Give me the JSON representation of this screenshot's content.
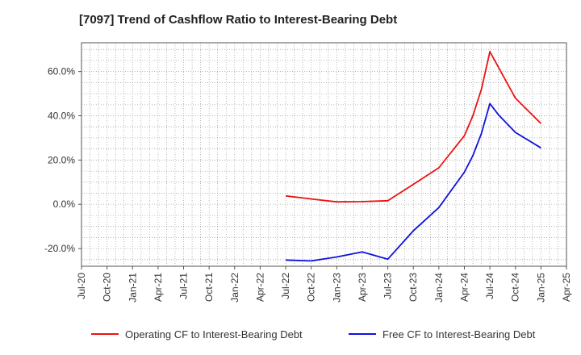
{
  "chart_data": {
    "type": "line",
    "title": "[7097]  Trend of Cashflow Ratio to Interest-Bearing Debt",
    "xlabel": "",
    "ylabel": "",
    "x_ticks": [
      "Jul-20",
      "Oct-20",
      "Jan-21",
      "Apr-21",
      "Jul-21",
      "Oct-21",
      "Jan-22",
      "Apr-22",
      "Jul-22",
      "Oct-22",
      "Jan-23",
      "Apr-23",
      "Jul-23",
      "Oct-23",
      "Jan-24",
      "Apr-24",
      "Jul-24",
      "Oct-24",
      "Jan-25",
      "Apr-25"
    ],
    "y_ticks": [
      -20,
      0,
      20,
      40,
      60
    ],
    "y_tick_labels": [
      "-20.0%",
      "0.0%",
      "20.0%",
      "40.0%",
      "60.0%"
    ],
    "ylim": [
      -28,
      73
    ],
    "grid": true,
    "legend_position": "bottom",
    "series": [
      {
        "name": "Operating CF to Interest-Bearing Debt",
        "color": "#ee1111",
        "points": [
          {
            "x": "Jul-22",
            "y": 3.8
          },
          {
            "x": "Oct-22",
            "y": 2.4
          },
          {
            "x": "Jan-23",
            "y": 1.1
          },
          {
            "x": "Apr-23",
            "y": 1.2
          },
          {
            "x": "Jul-23",
            "y": 1.6
          },
          {
            "x": "Oct-23",
            "y": 9.0
          },
          {
            "x": "Jan-24",
            "y": 16.5
          },
          {
            "x": "Apr-24",
            "y": 31.0
          },
          {
            "x": "May-24",
            "y": 40.0
          },
          {
            "x": "Jun-24",
            "y": 52.0
          },
          {
            "x": "Jul-24",
            "y": 69.0
          },
          {
            "x": "Aug-24",
            "y": 62.0
          },
          {
            "x": "Oct-24",
            "y": 48.0
          },
          {
            "x": "Jan-25",
            "y": 36.5
          }
        ]
      },
      {
        "name": "Free CF to Interest-Bearing Debt",
        "color": "#1111dd",
        "points": [
          {
            "x": "Jul-22",
            "y": -25.2
          },
          {
            "x": "Oct-22",
            "y": -25.6
          },
          {
            "x": "Jan-23",
            "y": -23.8
          },
          {
            "x": "Apr-23",
            "y": -21.5
          },
          {
            "x": "Jul-23",
            "y": -24.8
          },
          {
            "x": "Oct-23",
            "y": -12.0
          },
          {
            "x": "Jan-24",
            "y": -1.5
          },
          {
            "x": "Apr-24",
            "y": 14.5
          },
          {
            "x": "May-24",
            "y": 22.0
          },
          {
            "x": "Jun-24",
            "y": 32.0
          },
          {
            "x": "Jul-24",
            "y": 45.5
          },
          {
            "x": "Aug-24",
            "y": 40.5
          },
          {
            "x": "Oct-24",
            "y": 32.5
          },
          {
            "x": "Jan-25",
            "y": 25.5
          }
        ]
      }
    ]
  }
}
